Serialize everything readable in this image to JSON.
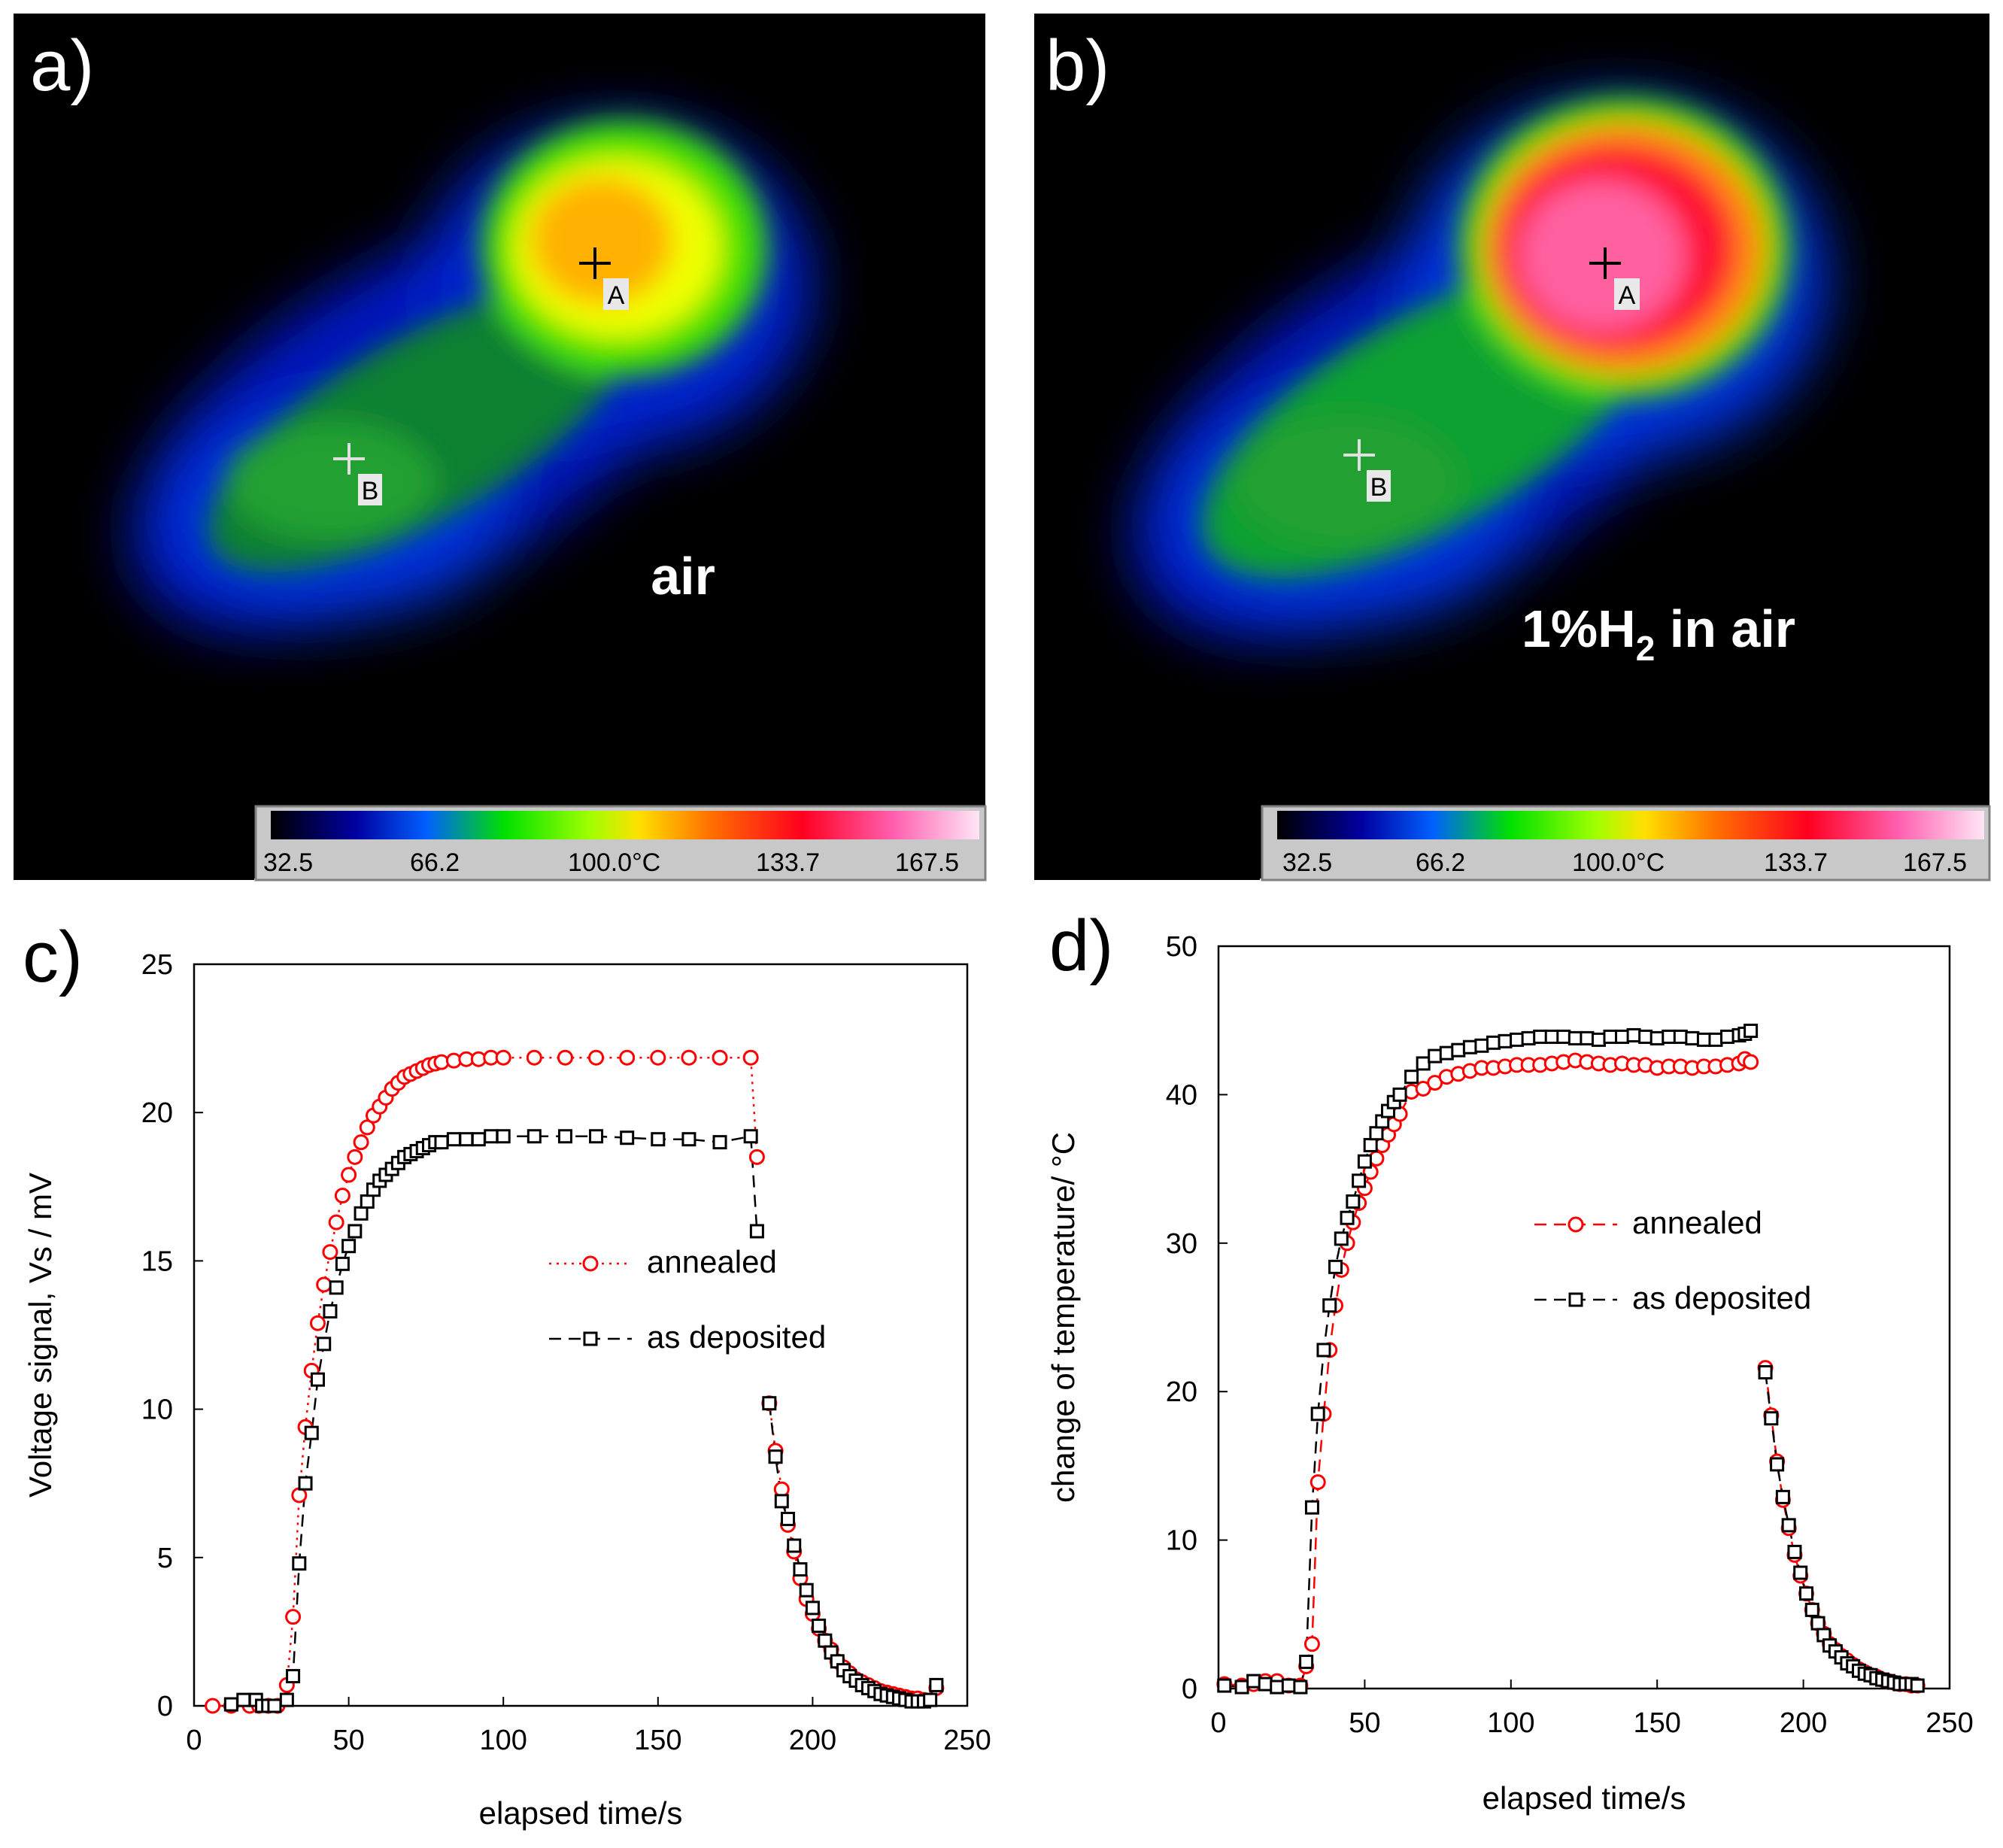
{
  "colors": {
    "annealed": "#ff0000",
    "as_deposited": "#000000",
    "thermal_background": "#000000",
    "label_on_image": "#ffffff"
  },
  "panels": {
    "a": {
      "label": "a)",
      "condition": "air",
      "markers": [
        "A",
        "B"
      ],
      "colorbar_ticks": [
        "32.5",
        "66.2",
        "100.0°C",
        "133.7",
        "167.5"
      ]
    },
    "b": {
      "label": "b)",
      "condition_prefix": "1%H",
      "condition_subscript": "2",
      "condition_suffix": " in air",
      "markers": [
        "A",
        "B"
      ],
      "colorbar_ticks": [
        "32.5",
        "66.2",
        "100.0°C",
        "133.7",
        "167.5"
      ]
    }
  },
  "chart_data": [
    {
      "panel": "c)",
      "type": "scatter",
      "title": "",
      "xlabel": "elapsed time/s",
      "ylabel": "Voltage signal, Vs / mV",
      "xlim": [
        0,
        250
      ],
      "ylim": [
        0,
        25
      ],
      "xticks": [
        0,
        50,
        100,
        150,
        200,
        250
      ],
      "yticks": [
        0,
        5,
        10,
        15,
        20,
        25
      ],
      "grid": false,
      "legend_position": "center-right",
      "series": [
        {
          "name": "annealed",
          "marker": "circle",
          "line": "dotted",
          "x": [
            6,
            12,
            18,
            21,
            24,
            27,
            30,
            32,
            34,
            36,
            38,
            40,
            42,
            44,
            46,
            48,
            50,
            52,
            54,
            56,
            58,
            60,
            62,
            64,
            66,
            68,
            70,
            72,
            74,
            76,
            78,
            80,
            84,
            88,
            92,
            96,
            100,
            110,
            120,
            130,
            140,
            150,
            160,
            170,
            180,
            182,
            186,
            188,
            190,
            192,
            194,
            196,
            198,
            200,
            202,
            204,
            206,
            208,
            210,
            212,
            214,
            216,
            218,
            220,
            222,
            224,
            226,
            228,
            230,
            232,
            234,
            236,
            240
          ],
          "y": [
            0,
            0,
            0,
            0,
            0,
            0,
            0.7,
            3,
            7.1,
            9.4,
            11.3,
            12.9,
            14.2,
            15.3,
            16.3,
            17.2,
            17.9,
            18.5,
            19,
            19.5,
            19.9,
            20.2,
            20.5,
            20.8,
            21,
            21.2,
            21.3,
            21.4,
            21.5,
            21.6,
            21.65,
            21.7,
            21.75,
            21.8,
            21.8,
            21.85,
            21.85,
            21.85,
            21.85,
            21.85,
            21.85,
            21.85,
            21.85,
            21.85,
            21.85,
            18.5,
            10.2,
            8.6,
            7.3,
            6.1,
            5.2,
            4.3,
            3.6,
            3.1,
            2.6,
            2.2,
            1.9,
            1.5,
            1.3,
            1.1,
            0.9,
            0.8,
            0.7,
            0.6,
            0.5,
            0.45,
            0.4,
            0.35,
            0.3,
            0.25,
            0.25,
            0.2,
            0.6
          ]
        },
        {
          "name": "as deposited",
          "marker": "square",
          "line": "dashed",
          "x": [
            12,
            16,
            20,
            22,
            24,
            26,
            30,
            32,
            34,
            36,
            38,
            40,
            42,
            44,
            46,
            48,
            50,
            52,
            54,
            56,
            58,
            60,
            62,
            64,
            66,
            68,
            70,
            72,
            74,
            76,
            78,
            80,
            84,
            88,
            92,
            96,
            100,
            110,
            120,
            130,
            140,
            150,
            160,
            170,
            180,
            182,
            186,
            188,
            190,
            192,
            194,
            196,
            198,
            200,
            202,
            204,
            206,
            208,
            210,
            212,
            214,
            216,
            218,
            220,
            222,
            224,
            226,
            228,
            230,
            232,
            234,
            236,
            238,
            240
          ],
          "y": [
            0.05,
            0.2,
            0.2,
            0,
            0,
            0,
            0.2,
            1,
            4.8,
            7.5,
            9.2,
            11,
            12.2,
            13.3,
            14.1,
            14.9,
            15.5,
            16,
            16.6,
            17,
            17.4,
            17.7,
            17.9,
            18.1,
            18.3,
            18.5,
            18.6,
            18.7,
            18.8,
            18.9,
            19,
            19,
            19.1,
            19.1,
            19.1,
            19.2,
            19.2,
            19.2,
            19.2,
            19.2,
            19.15,
            19.1,
            19.1,
            19,
            19.2,
            16,
            10.2,
            8.4,
            6.9,
            6.3,
            5.4,
            4.6,
            3.9,
            3.3,
            2.7,
            2.2,
            1.8,
            1.5,
            1.2,
            1,
            0.85,
            0.7,
            0.6,
            0.5,
            0.4,
            0.35,
            0.3,
            0.25,
            0.2,
            0.15,
            0.15,
            0.15,
            0.2,
            0.7
          ]
        }
      ]
    },
    {
      "panel": "d)",
      "type": "scatter",
      "title": "",
      "xlabel": "elapsed time/s",
      "ylabel": "change of temperature/ °C",
      "xlim": [
        0,
        250
      ],
      "ylim": [
        0,
        50
      ],
      "xticks": [
        0,
        50,
        100,
        150,
        200,
        250
      ],
      "yticks": [
        0,
        10,
        20,
        30,
        40,
        50
      ],
      "grid": false,
      "legend_position": "center-right",
      "series": [
        {
          "name": "annealed",
          "marker": "circle",
          "line": "dashed",
          "x": [
            2,
            8,
            12,
            16,
            20,
            24,
            28,
            30,
            32,
            34,
            36,
            38,
            40,
            42,
            44,
            46,
            48,
            50,
            52,
            54,
            56,
            58,
            60,
            62,
            66,
            70,
            74,
            78,
            82,
            86,
            90,
            94,
            98,
            102,
            106,
            110,
            114,
            118,
            122,
            126,
            130,
            134,
            138,
            142,
            146,
            150,
            154,
            158,
            162,
            166,
            170,
            174,
            178,
            180,
            182,
            187,
            189,
            191,
            193,
            195,
            197,
            199,
            201,
            203,
            205,
            207,
            209,
            211,
            213,
            215,
            217,
            219,
            221,
            223,
            225,
            227,
            229,
            231,
            233,
            235,
            237,
            239
          ],
          "y": [
            0.3,
            0.2,
            0.3,
            0.5,
            0.5,
            0.2,
            0.2,
            1.5,
            3,
            13.9,
            18.5,
            22.8,
            25.8,
            28.2,
            30,
            31.4,
            32.7,
            33.7,
            34.8,
            35.7,
            36.6,
            37.3,
            38,
            38.7,
            40.2,
            40.4,
            40.8,
            41.2,
            41.4,
            41.6,
            41.8,
            41.8,
            41.9,
            42,
            42,
            42,
            42.1,
            42.2,
            42.3,
            42.2,
            42.1,
            42,
            42.1,
            42,
            42,
            41.8,
            41.9,
            41.9,
            41.8,
            41.9,
            41.9,
            42,
            42.1,
            42.4,
            42.2,
            21.6,
            18.4,
            15.3,
            12.7,
            10.8,
            9,
            7.6,
            6.4,
            5.3,
            4.4,
            3.7,
            3,
            2.6,
            2.2,
            1.9,
            1.6,
            1.3,
            1.1,
            0.9,
            0.8,
            0.6,
            0.5,
            0.4,
            0.3,
            0.3,
            0.2,
            0.2
          ]
        },
        {
          "name": "as deposited",
          "marker": "square",
          "line": "dashed",
          "x": [
            2,
            8,
            12,
            16,
            20,
            24,
            28,
            30,
            32,
            34,
            36,
            38,
            40,
            42,
            44,
            46,
            48,
            50,
            52,
            54,
            56,
            58,
            60,
            62,
            66,
            70,
            74,
            78,
            82,
            86,
            90,
            94,
            98,
            102,
            106,
            110,
            114,
            118,
            122,
            126,
            130,
            134,
            138,
            142,
            146,
            150,
            154,
            158,
            162,
            166,
            170,
            174,
            178,
            180,
            182,
            187,
            189,
            191,
            193,
            195,
            197,
            199,
            201,
            203,
            205,
            207,
            209,
            211,
            213,
            215,
            217,
            219,
            221,
            223,
            225,
            227,
            229,
            231,
            233,
            235,
            237,
            239
          ],
          "y": [
            0.2,
            0.1,
            0.5,
            0.3,
            0.1,
            0.2,
            0.1,
            1.8,
            12.2,
            18.5,
            22.8,
            25.8,
            28.4,
            30.3,
            31.7,
            32.8,
            34.2,
            35.5,
            36.6,
            37.4,
            38.2,
            38.9,
            39.5,
            40,
            41.2,
            42.1,
            42.6,
            42.8,
            43,
            43.2,
            43.3,
            43.5,
            43.6,
            43.7,
            43.8,
            43.9,
            43.9,
            43.9,
            43.8,
            43.8,
            43.7,
            43.9,
            43.9,
            44,
            43.9,
            43.8,
            43.9,
            43.9,
            43.8,
            43.7,
            43.7,
            43.9,
            44,
            44.1,
            44.3,
            21.3,
            18.2,
            15.1,
            12.9,
            11,
            9.2,
            7.8,
            6.4,
            5.3,
            4.4,
            3.6,
            2.9,
            2.5,
            2.1,
            1.7,
            1.5,
            1.2,
            1,
            0.9,
            0.7,
            0.6,
            0.5,
            0.4,
            0.3,
            0.3,
            0.3,
            0.2
          ]
        }
      ]
    }
  ]
}
